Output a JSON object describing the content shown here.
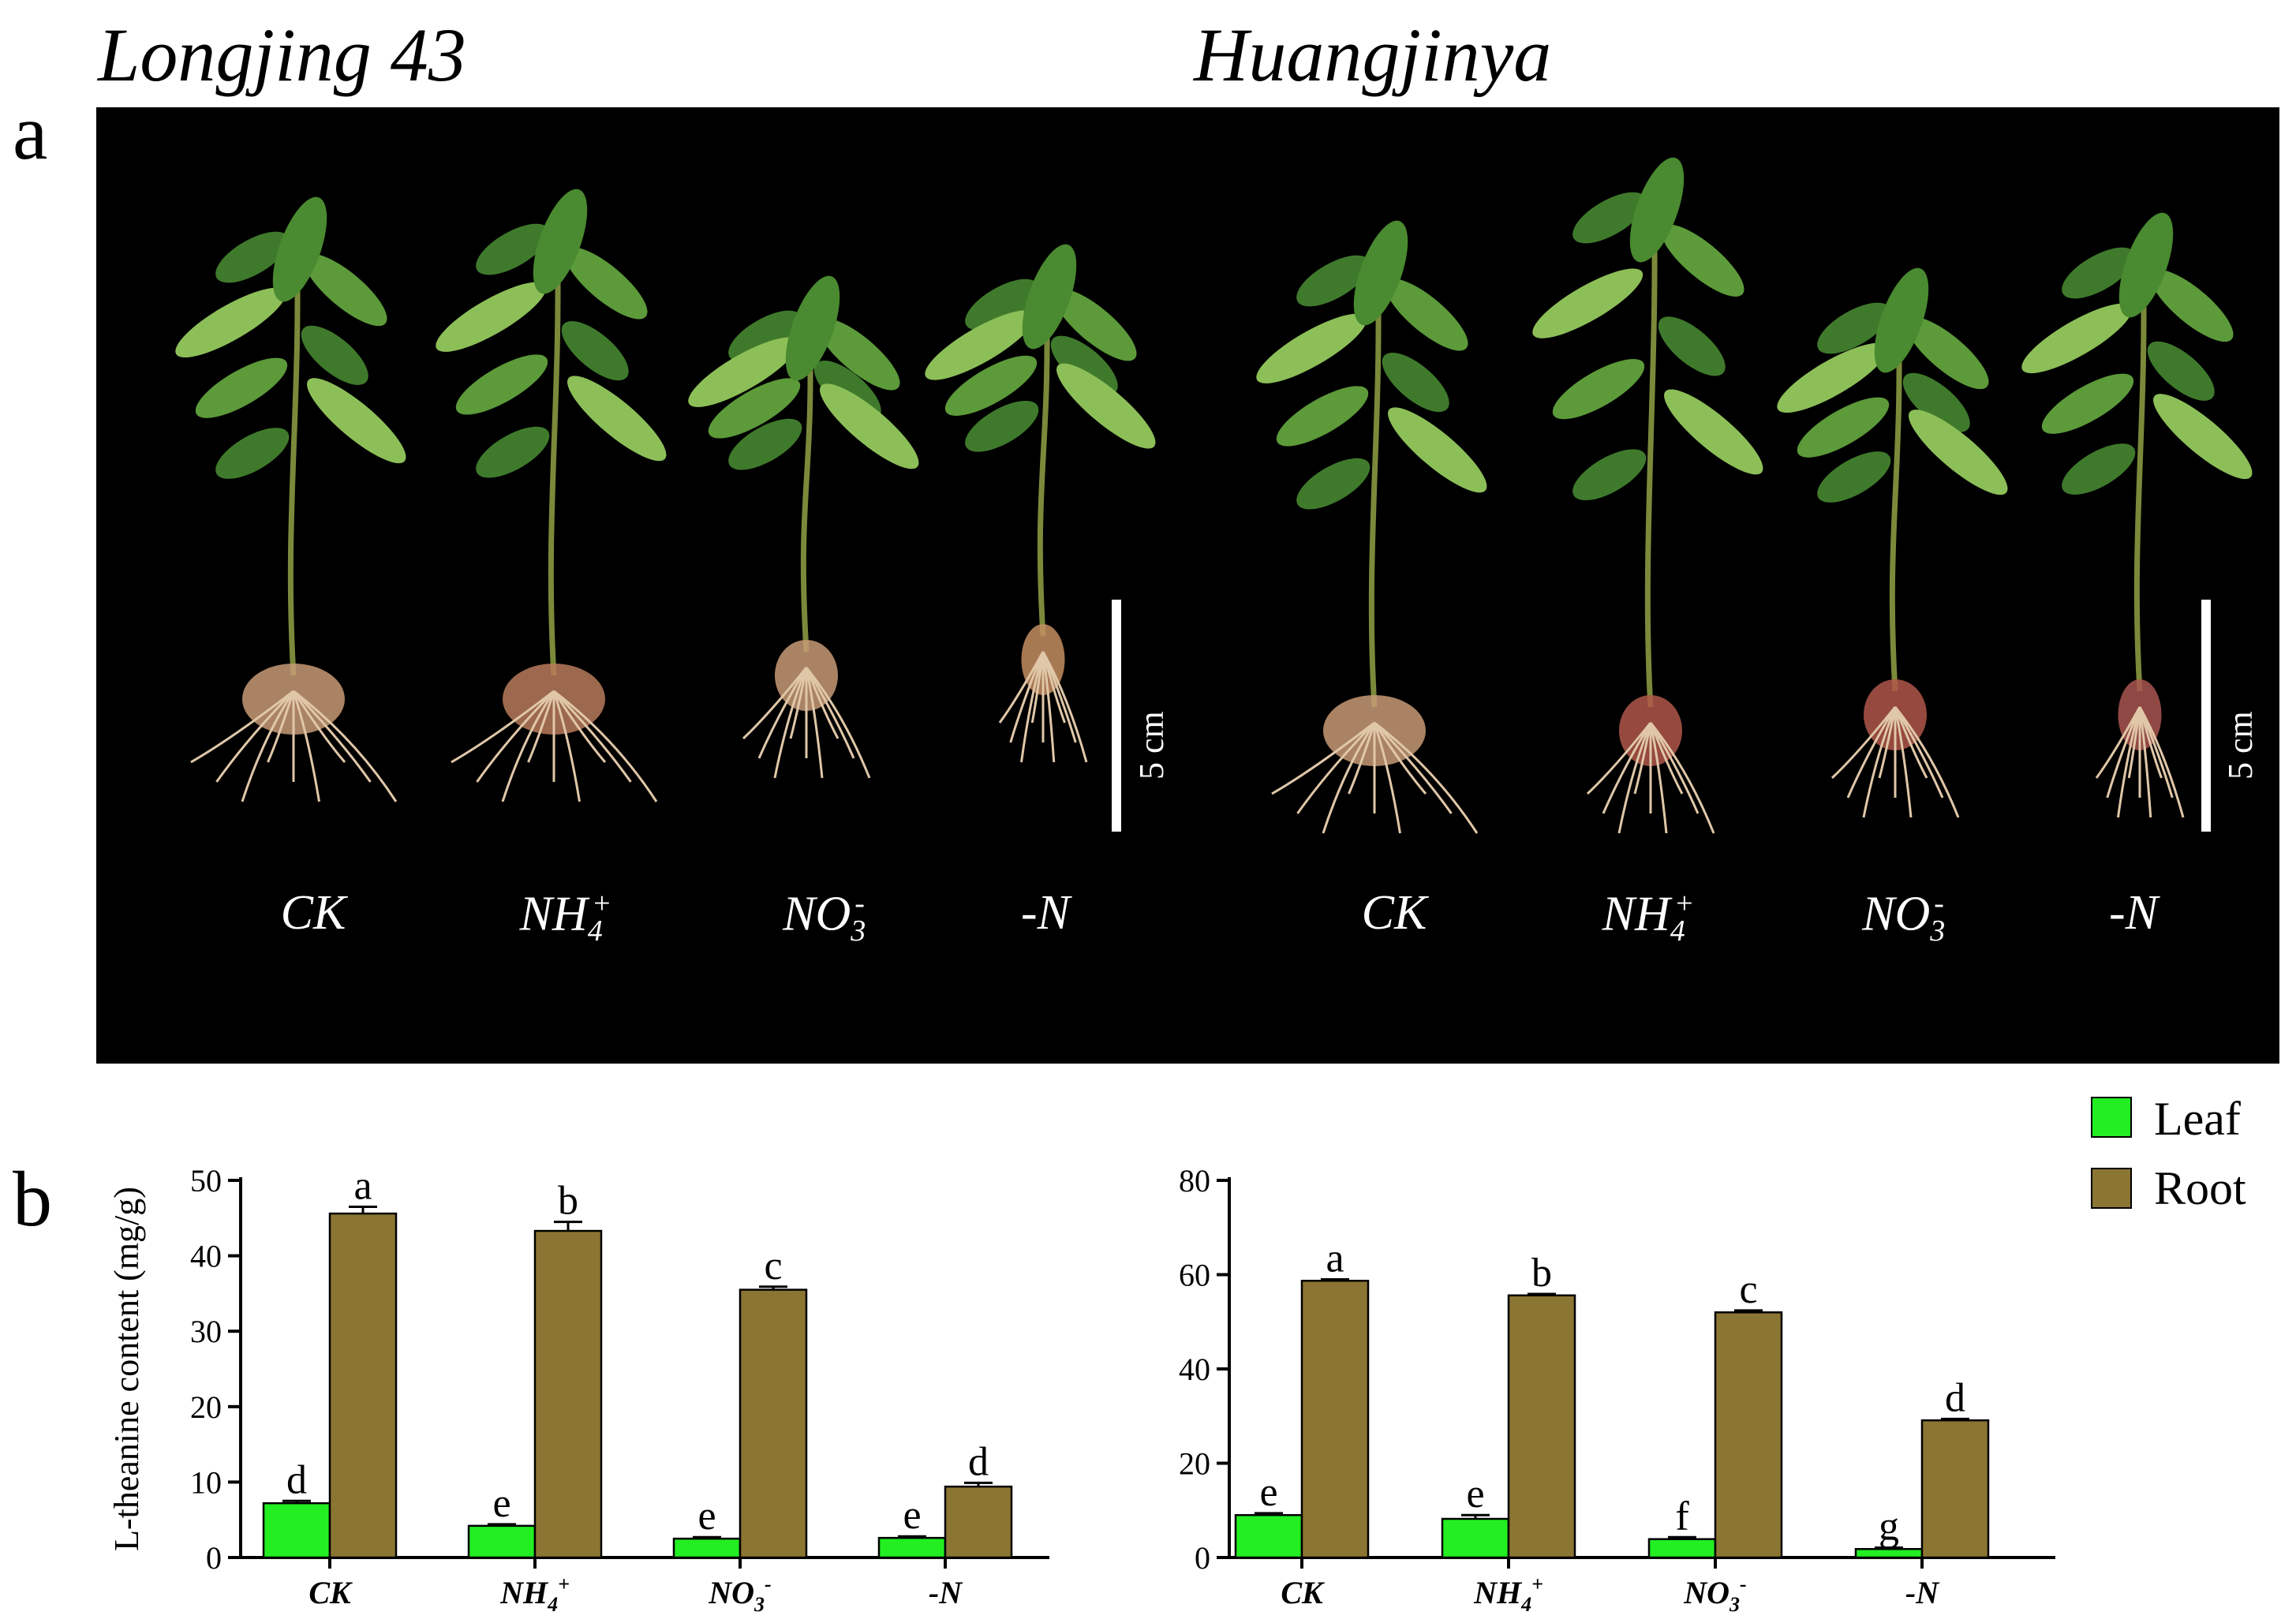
{
  "varieties": {
    "left": "Longjing 43",
    "right": "Huangjinya"
  },
  "panels": {
    "a": "a",
    "b": "b"
  },
  "photo": {
    "treatments": [
      "CK",
      "NH",
      "NO",
      "-N"
    ],
    "nh_sub": "4",
    "nh_sup": "+",
    "no_sub": "3",
    "no_sup": "-",
    "scale_label": "5 cm"
  },
  "legend": [
    {
      "label": "Leaf",
      "color": "#22ee22"
    },
    {
      "label": "Root",
      "color": "#8b7532"
    }
  ],
  "chart_data": [
    {
      "type": "bar",
      "title": "Longjing 43",
      "ylabel": "L-theanine content (mg/g)",
      "xlabel": "",
      "ylim": [
        0,
        50
      ],
      "yticks": [
        0,
        10,
        20,
        30,
        40,
        50
      ],
      "categories": [
        "CK",
        "NH4+",
        "NO3-",
        "-N"
      ],
      "series": [
        {
          "name": "Leaf",
          "values": [
            7.2,
            4.2,
            2.5,
            2.6
          ],
          "errors": [
            0.3,
            0.2,
            0.2,
            0.2
          ],
          "letters": [
            "d",
            "e",
            "e",
            "e"
          ],
          "color": "#22ee22"
        },
        {
          "name": "Root",
          "values": [
            45.6,
            43.3,
            35.5,
            9.4
          ],
          "errors": [
            0.9,
            1.2,
            0.4,
            0.5
          ],
          "letters": [
            "a",
            "b",
            "c",
            "d"
          ],
          "color": "#8b7532"
        }
      ]
    },
    {
      "type": "bar",
      "title": "Huangjinya",
      "ylabel": "",
      "xlabel": "",
      "ylim": [
        0,
        80
      ],
      "yticks": [
        0,
        20,
        40,
        60,
        80
      ],
      "categories": [
        "CK",
        "NH4+",
        "NO3-",
        "-N"
      ],
      "series": [
        {
          "name": "Leaf",
          "values": [
            9.0,
            8.2,
            3.9,
            1.8
          ],
          "errors": [
            0.4,
            0.8,
            0.4,
            0.3
          ],
          "letters": [
            "e",
            "e",
            "f",
            "g"
          ],
          "color": "#22ee22"
        },
        {
          "name": "Root",
          "values": [
            58.7,
            55.6,
            52.0,
            29.1
          ],
          "errors": [
            0.3,
            0.3,
            0.4,
            0.3
          ],
          "letters": [
            "a",
            "b",
            "c",
            "d"
          ],
          "color": "#8b7532"
        }
      ]
    }
  ]
}
